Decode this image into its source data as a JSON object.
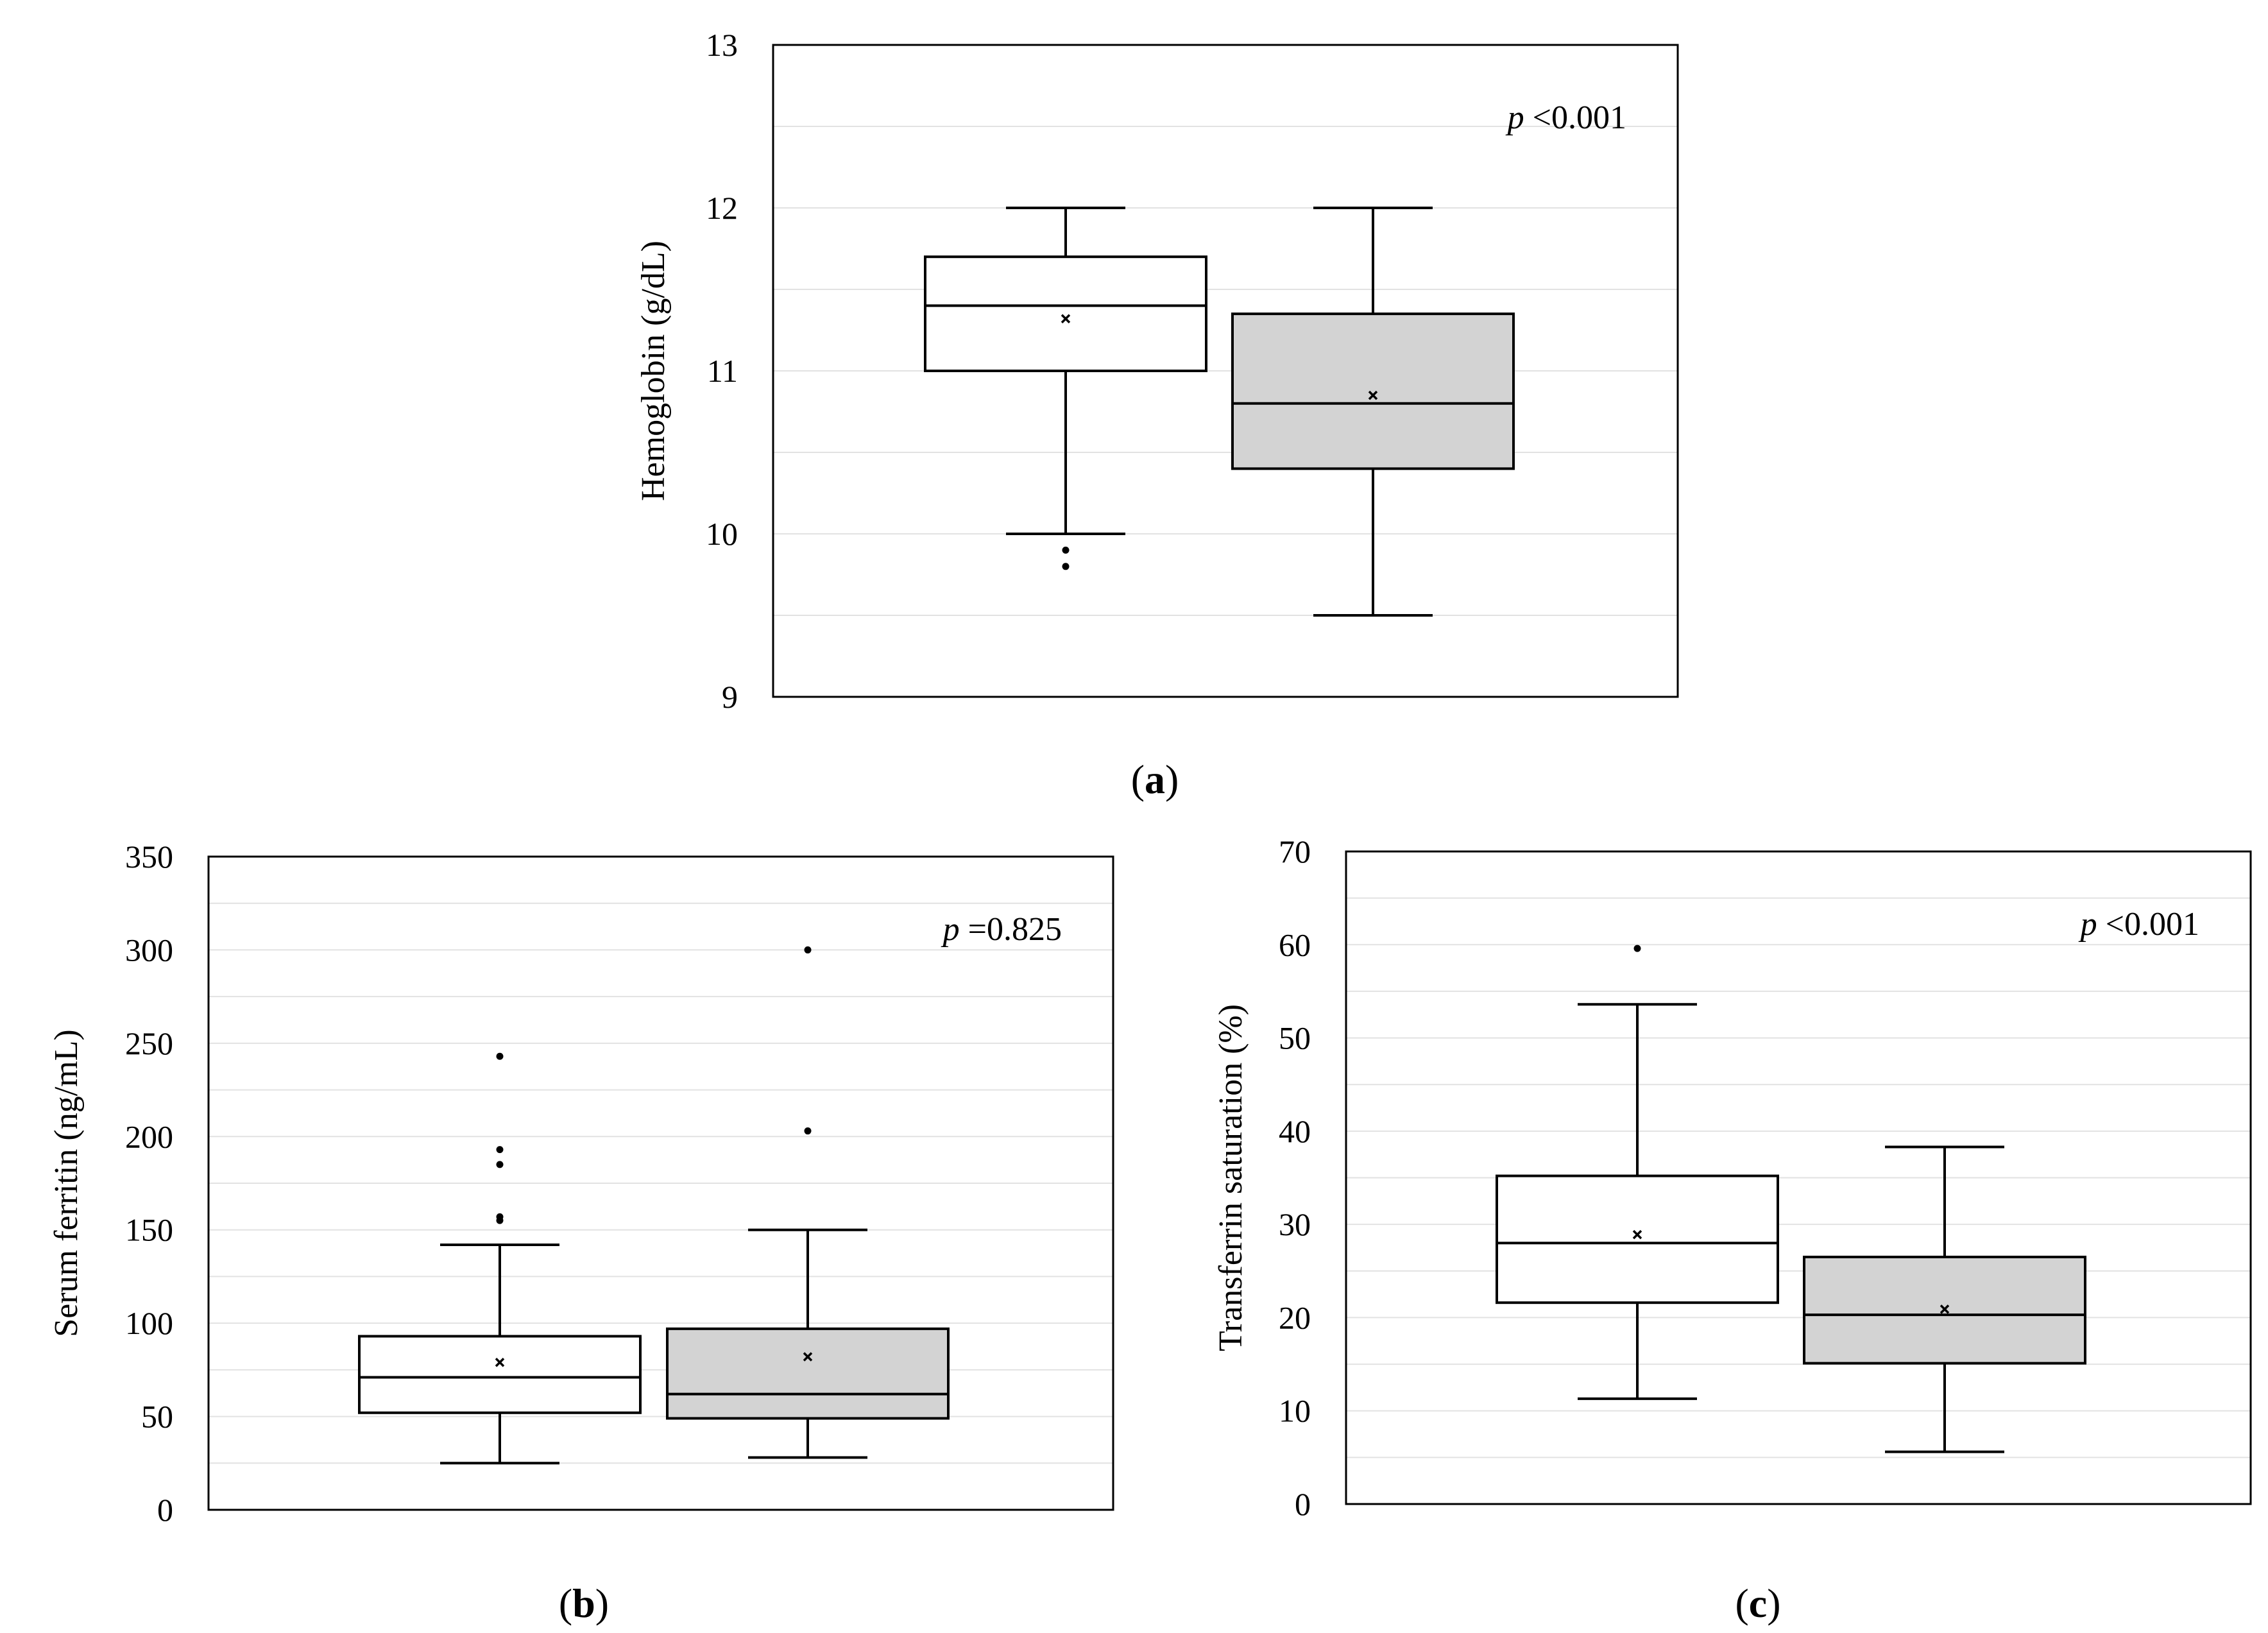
{
  "chart_data": [
    {
      "type": "box",
      "panel": "a",
      "panel_label": "a",
      "ylabel": "Hemoglobin (g/dL)",
      "ylim": [
        9,
        13
      ],
      "yticks": [
        9,
        10,
        11,
        12,
        13
      ],
      "grid": true,
      "p_value": {
        "symbol": "p",
        "text": "<0.001"
      },
      "groups": [
        {
          "fill": "#ffffff",
          "min": 10.0,
          "q1": 11.0,
          "median": 11.4,
          "q3": 11.7,
          "max": 12.0,
          "mean": 11.32,
          "outliers": [
            9.9,
            9.8
          ]
        },
        {
          "fill": "#d3d3d3",
          "min": 9.5,
          "q1": 10.4,
          "median": 10.8,
          "q3": 11.35,
          "max": 12.0,
          "mean": 10.85,
          "outliers": []
        }
      ]
    },
    {
      "type": "box",
      "panel": "b",
      "panel_label": "b",
      "ylabel": "Serum ferritin (ng/mL)",
      "ylim": [
        0,
        350
      ],
      "yticks": [
        0,
        50,
        100,
        150,
        200,
        250,
        300,
        350
      ],
      "grid": true,
      "p_value": {
        "symbol": "p",
        "text": "=0.825"
      },
      "groups": [
        {
          "fill": "#ffffff",
          "min": 25,
          "q1": 52,
          "median": 71,
          "q3": 93,
          "max": 142,
          "mean": 79,
          "outliers": [
            157,
            155,
            185,
            193,
            243
          ]
        },
        {
          "fill": "#d3d3d3",
          "min": 28,
          "q1": 49,
          "median": 62,
          "q3": 97,
          "max": 150,
          "mean": 82,
          "outliers": [
            203,
            300
          ]
        }
      ]
    },
    {
      "type": "box",
      "panel": "c",
      "panel_label": "c",
      "ylabel": "Transferrin saturation (%)",
      "ylim": [
        0,
        70
      ],
      "yticks": [
        0,
        10,
        20,
        30,
        40,
        50,
        60,
        70
      ],
      "grid": true,
      "p_value": {
        "symbol": "p",
        "text": "<0.001"
      },
      "groups": [
        {
          "fill": "#ffffff",
          "min": 11.3,
          "q1": 21.6,
          "median": 28.0,
          "q3": 35.2,
          "max": 53.6,
          "mean": 28.9,
          "outliers": [
            59.6
          ]
        },
        {
          "fill": "#d3d3d3",
          "min": 5.6,
          "q1": 15.1,
          "median": 20.3,
          "q3": 26.5,
          "max": 38.3,
          "mean": 20.9,
          "outliers": []
        }
      ]
    }
  ]
}
